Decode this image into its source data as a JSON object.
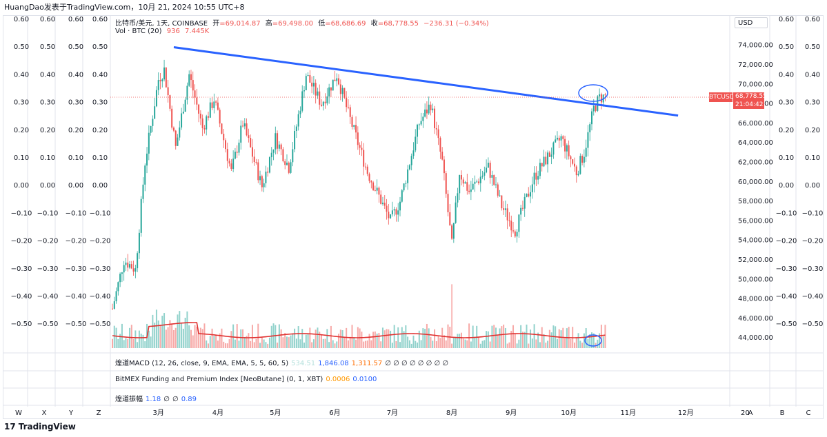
{
  "topbar": {
    "caption": "HuangDao发表于TradingView.com，10月 21, 2024 10:55 UTC+8"
  },
  "header": {
    "symbol_line": "比特币/美元, 1天, COINBASE",
    "open_label": "开",
    "open_value": "=69,014.87",
    "high_label": "高",
    "high_value": "=69,498.00",
    "low_label": "低",
    "low_value": "=68,686.69",
    "close_label": "收",
    "close_value": "=68,778.55",
    "change_value": "−236.31 (−0.34%)",
    "vol_label": "Vol · BTC (20)",
    "vol_value_1": "936",
    "vol_value_2": "7.445K"
  },
  "indicators": [
    {
      "name": "煌道MACD (12, 26, close, 9, EMA, EMA, 5, 5, 60, 5)",
      "values": [
        "534.51",
        "1,846.08",
        "1,311.57"
      ],
      "colors": [
        "#b2dfdb",
        "#2962ff",
        "#ff6d00"
      ],
      "tail": "∅ ∅ ∅ ∅ ∅ ∅ ∅ ∅"
    },
    {
      "name": "BitMEX Funding and Premium Index [NeoButane] (0, 1, XBT)",
      "values": [
        "0.0006",
        "0.0100"
      ],
      "colors": [
        "#ff9800",
        "#2962ff"
      ],
      "tail": ""
    },
    {
      "name": "煌道振幅",
      "values": [
        "1.18",
        "∅",
        "∅",
        "0.89"
      ],
      "colors": [
        "#2962ff",
        "#131722",
        "#131722",
        "#2962ff"
      ],
      "tail": ""
    }
  ],
  "currency_button": "USD",
  "last_price": {
    "symbol": "BTCUSD",
    "price": "68,778.55",
    "countdown": "21:04:42",
    "color": "#ef5350"
  },
  "footer": {
    "brand": "TradingView",
    "logo_glyph": "17"
  },
  "scale_letters": {
    "left": [
      "W",
      "X",
      "Y",
      "Z"
    ],
    "right": [
      "A",
      "B",
      "C"
    ]
  },
  "chart_data": {
    "type": "candlestick",
    "y_axis": {
      "range": [
        42500,
        75500
      ],
      "tick_labels": [
        "74,000.00",
        "72,000.00",
        "70,000.00",
        "68,000.00",
        "66,000.00",
        "64,000.00",
        "62,000.00",
        "60,000.00",
        "58,000.00",
        "56,000.00",
        "54,000.00",
        "52,000.00",
        "50,000.00",
        "48,000.00",
        "46,000.00",
        "44,000.00"
      ],
      "tick_values": [
        74000,
        72000,
        70000,
        68000,
        66000,
        64000,
        62000,
        60000,
        58000,
        56000,
        54000,
        52000,
        50000,
        48000,
        46000,
        44000
      ]
    },
    "side_scales": {
      "tick_labels": [
        "0.60",
        "0.50",
        "0.40",
        "0.30",
        "0.20",
        "0.10",
        "0.00",
        "−0.10",
        "−0.20",
        "−0.30",
        "−0.40",
        "−0.50"
      ],
      "tick_values": [
        0.6,
        0.5,
        0.4,
        0.3,
        0.2,
        0.1,
        0,
        -0.1,
        -0.2,
        -0.3,
        -0.4,
        -0.5
      ]
    },
    "x_axis": {
      "tick_labels": [
        "3月",
        "4月",
        "5月",
        "6月",
        "7月",
        "8月",
        "9月",
        "10月",
        "11月",
        "12月",
        "20"
      ],
      "tick_days": [
        24,
        55,
        85,
        116,
        146,
        177,
        208,
        238,
        269,
        299,
        330
      ]
    },
    "colors": {
      "up": "#26a69a",
      "down": "#ef5350",
      "trendline": "#2962ff",
      "ma": "#e0302f"
    },
    "anchors": [
      [
        0,
        47000
      ],
      [
        6,
        52000
      ],
      [
        12,
        51000
      ],
      [
        17,
        62000
      ],
      [
        24,
        70500
      ],
      [
        27,
        71500
      ],
      [
        33,
        63500
      ],
      [
        40,
        71000
      ],
      [
        47,
        65500
      ],
      [
        53,
        68500
      ],
      [
        62,
        61000
      ],
      [
        68,
        66000
      ],
      [
        78,
        59500
      ],
      [
        85,
        64500
      ],
      [
        92,
        61500
      ],
      [
        101,
        71000
      ],
      [
        109,
        68000
      ],
      [
        117,
        71000
      ],
      [
        123,
        67000
      ],
      [
        133,
        61000
      ],
      [
        145,
        56000
      ],
      [
        150,
        58000
      ],
      [
        160,
        66000
      ],
      [
        166,
        68000
      ],
      [
        172,
        62000
      ],
      [
        177,
        53500
      ],
      [
        181,
        61000
      ],
      [
        186,
        59000
      ],
      [
        196,
        61500
      ],
      [
        203,
        57500
      ],
      [
        210,
        55000
      ],
      [
        220,
        60500
      ],
      [
        225,
        62000
      ],
      [
        234,
        64500
      ],
      [
        242,
        61000
      ],
      [
        246,
        63000
      ],
      [
        251,
        67500
      ],
      [
        254,
        68600
      ],
      [
        257,
        68780
      ]
    ],
    "total_days": 257,
    "trendline": {
      "start_day": 32,
      "start_price": 73800,
      "end_day": 295,
      "end_price": 66800
    }
  }
}
